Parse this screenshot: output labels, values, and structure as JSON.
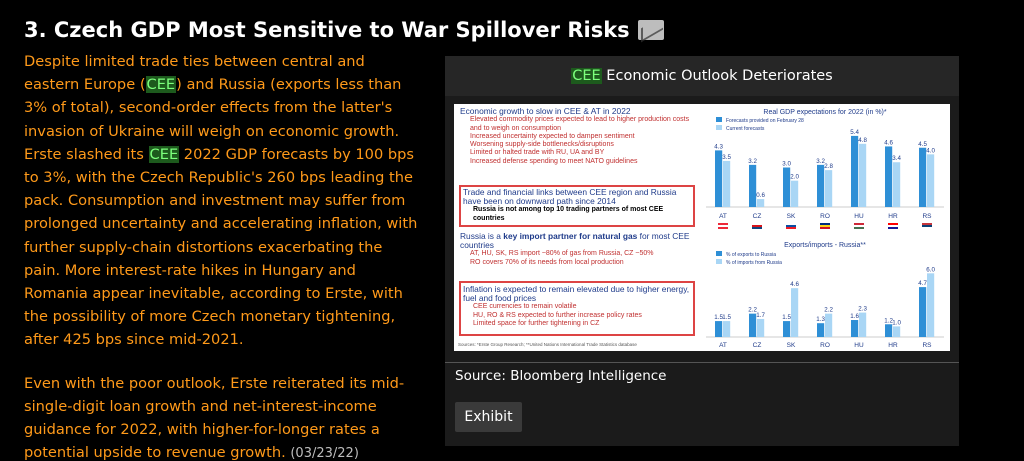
{
  "header": {
    "title": "3. Czech GDP Most Sensitive to War Spillover Risks",
    "icon": "mail-icon"
  },
  "article": {
    "p1_a": "Despite limited trade ties between central and eastern Europe (",
    "p1_cee": "CEE",
    "p1_b": ") and Russia (exports less than 3% of total), second-order effects from the latter's invasion of Ukraine will weigh on economic growth. Erste slashed its ",
    "p1_cee2": "CEE",
    "p1_c": " 2022 GDP forecasts by 100 bps to 3%, with the Czech Republic's 260 bps leading the pack. Consumption and investment may suffer from prolonged uncertainty and accelerating inflation, with further supply-chain distortions exacerbating the pain. More interest-rate hikes in Hungary and Romania appear inevitable, according to Erste, with the possibility of more Czech monetary tightening, after 425 bps since mid-2021.",
    "p2": "Even with the poor outlook, Erste reiterated its mid-single-digit loan growth and net-interest-income guidance for 2022, with higher-for-longer rates a potential upside to revenue growth.",
    "date": "(03/23/22)"
  },
  "exhibit": {
    "title_hl": "CEE",
    "title_rest": " Economic Outlook Deteriorates",
    "source": "Source: Bloomberg Intelligence",
    "button": "Exhibit",
    "left_panel": {
      "h1": "Economic growth to slow in CEE & AT in 2022",
      "b1": [
        "Elevated commodity prices expected to lead to higher production costs and to weigh on consumption",
        "Increased uncertainty expected to dampen sentiment",
        "Worsening supply-side bottlenecks/disruptions",
        "Limited or halted trade with RU, UA and BY",
        "Increased defense spending to meet NATO guidelines"
      ],
      "h2": "Trade and financial links between CEE region and Russia have been on downward path since 2014",
      "b2": "Russia is not among top 10 trading partners of most CEE countries",
      "h3_a": "Russia is a ",
      "h3_b": "key import partner for natural gas",
      "h3_c": " for most CEE countries",
      "b3": [
        "AT, HU, SK, RS import ~80% of gas from Russia, CZ ~50%",
        "RO covers 70% of its needs from local production"
      ],
      "h4": "Inflation is expected to remain elevated due to higher energy, fuel and food prices",
      "b4": [
        "CEE currencies to remain volatile",
        "HU, RO & RS expected to further increase policy rates",
        "Limited space for further tightening in CZ"
      ],
      "footnote": "Sources: *Erste Group Research; **United Nations International Trade Statistics database"
    }
  },
  "chart_data": [
    {
      "type": "bar",
      "title": "Real GDP expectations for 2022 (in %)*",
      "categories": [
        "AT",
        "CZ",
        "SK",
        "RO",
        "HU",
        "HR",
        "RS"
      ],
      "series": [
        {
          "name": "Forecasts provided on February 28",
          "color": "#2e8fd6",
          "values": [
            4.3,
            3.2,
            3.0,
            3.2,
            5.4,
            4.6,
            4.5
          ]
        },
        {
          "name": "Current forecasts",
          "color": "#a9d6f5",
          "values": [
            3.5,
            0.6,
            2.0,
            2.8,
            4.8,
            3.4,
            4.0
          ]
        }
      ],
      "ylim": [
        0,
        6
      ]
    },
    {
      "type": "bar",
      "title": "Exports/imports - Russia**",
      "categories": [
        "AT",
        "CZ",
        "SK",
        "RO",
        "HU",
        "HR",
        "RS"
      ],
      "series": [
        {
          "name": "% of exports to Russia",
          "color": "#2e8fd6",
          "values": [
            1.5,
            2.2,
            1.5,
            1.3,
            1.6,
            1.2,
            4.7
          ]
        },
        {
          "name": "% of imports from Russia",
          "color": "#a9d6f5",
          "values": [
            1.5,
            1.7,
            4.6,
            2.2,
            2.3,
            1.0,
            6.0
          ]
        }
      ],
      "ylim": [
        0,
        6.5
      ]
    }
  ]
}
